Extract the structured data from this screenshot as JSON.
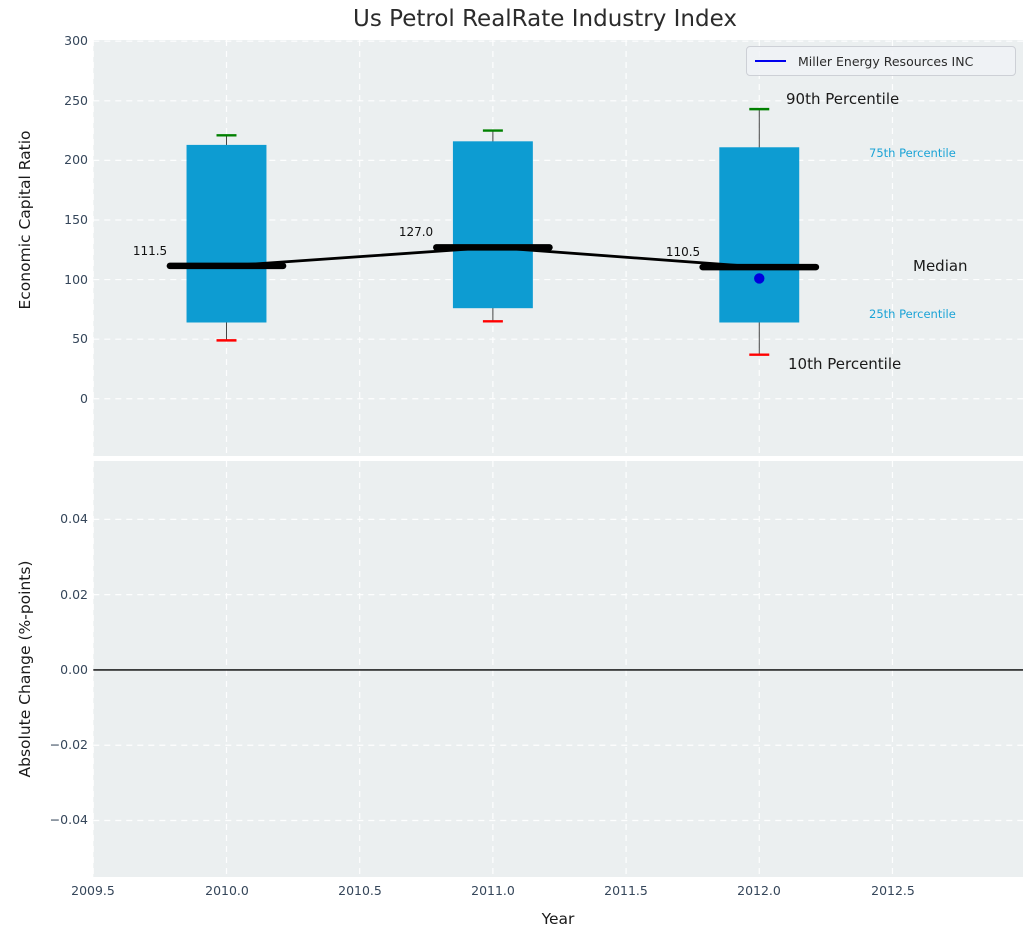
{
  "figure": {
    "title": "Us Petrol RealRate Industry Index"
  },
  "legend": {
    "label": "Miller Energy Resources INC",
    "line_color": "#0000ee"
  },
  "axes_top": {
    "ylabel": "Economic Capital Ratio",
    "ytick_labels": [
      "300",
      "250",
      "200",
      "150",
      "100",
      "50",
      "0"
    ],
    "annotations": [
      "111.5",
      "127.0",
      "110.5"
    ],
    "percentile_labels": {
      "p90": "90th Percentile",
      "p75": "75th Percentile",
      "median": "Median",
      "p25": "25th Percentile",
      "p10": "10th Percentile"
    }
  },
  "axes_bottom": {
    "ylabel": "Absolute Change (%-points)",
    "ytick_labels": [
      "0.04",
      "0.02",
      "0.00",
      "−0.02",
      "−0.04"
    ]
  },
  "xaxis": {
    "label": "Year",
    "tick_labels": [
      "2009.5",
      "2010.0",
      "2010.5",
      "2011.0",
      "2011.5",
      "2012.0",
      "2012.5"
    ]
  },
  "chart_data": [
    {
      "type": "boxplot",
      "title": "Us Petrol RealRate Industry Index",
      "xlabel": "Year",
      "ylabel": "Economic Capital Ratio",
      "xlim": [
        2009.5,
        2012.99
      ],
      "ylim": [
        -48,
        301
      ],
      "xticks": [
        2009.5,
        2010.0,
        2010.5,
        2011.0,
        2011.5,
        2012.0,
        2012.5
      ],
      "yticks": [
        0,
        50,
        100,
        150,
        200,
        250,
        300
      ],
      "grid": "white-dashed",
      "legend_position": "upper right",
      "boxes": [
        {
          "x": 2010,
          "p10": 49,
          "p25": 64,
          "median": 111.5,
          "p75": 213,
          "p90": 221
        },
        {
          "x": 2011,
          "p10": 65,
          "p25": 76,
          "median": 127.0,
          "p75": 216,
          "p90": 225
        },
        {
          "x": 2012,
          "p10": 37,
          "p25": 64,
          "median": 110.5,
          "p75": 211,
          "p90": 243
        }
      ],
      "median_line": [
        {
          "x": 2010,
          "y": 111.5
        },
        {
          "x": 2011,
          "y": 127.0
        },
        {
          "x": 2012,
          "y": 110.5
        }
      ],
      "company_series": {
        "name": "Miller Energy Resources INC",
        "points": [
          {
            "x": 2012,
            "y": 101
          }
        ]
      },
      "colors": {
        "box": "#0d9cd2",
        "cap_top": "#008000",
        "cap_bottom": "#ff0000",
        "median": "#000000",
        "company": "#0000dd",
        "whisker": "#444444",
        "plot_bg": "#ebeff0",
        "grid": "#ffffff"
      }
    },
    {
      "type": "line",
      "ylabel": "Absolute Change (%-points)",
      "xlabel": "Year",
      "xlim": [
        2009.5,
        2012.99
      ],
      "ylim": [
        -0.055,
        0.0555
      ],
      "xticks": [
        2009.5,
        2010.0,
        2010.5,
        2011.0,
        2011.5,
        2012.0,
        2012.5
      ],
      "yticks": [
        0.04,
        0.02,
        0.0,
        -0.02,
        -0.04
      ],
      "grid": "white-dashed",
      "series": [],
      "zero_line": 0.0
    }
  ]
}
